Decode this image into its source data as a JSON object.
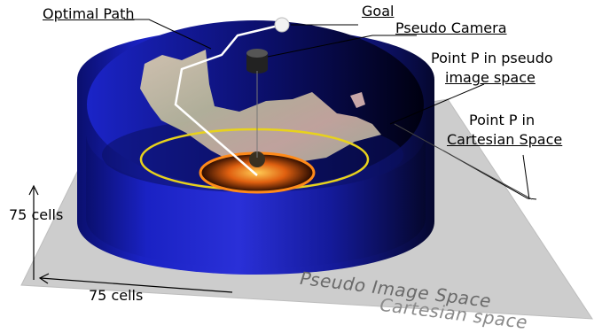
{
  "labels": {
    "optimal_path": "Optimal Path",
    "goal": "Goal",
    "pseudo_camera": "Pseudo Camera",
    "point_p_pseudo_line1": "Point P in pseudo",
    "point_p_pseudo_line2": "image space",
    "point_p_cartesian_line1": "Point P in",
    "point_p_cartesian_line2": "Cartesian Space",
    "vertical_cells": "75 cells",
    "horizontal_cells": "75 cells",
    "pseudo_image_space": "Pseudo Image Space",
    "cartesian_space": "Cartesian space"
  },
  "colors": {
    "cylinder_blue": "#1a1fc0",
    "cylinder_dark": "#000018",
    "floor_plane": "#cfcfcf",
    "yellow_ring": "#e8d21c",
    "orange_ring": "#ff8a1a",
    "path_white": "#ffffff"
  }
}
